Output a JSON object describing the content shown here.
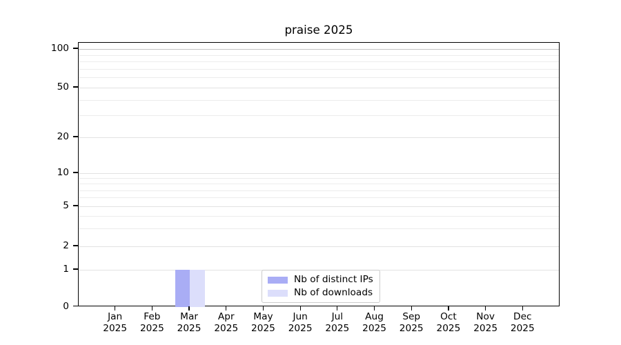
{
  "chart_data": {
    "type": "bar",
    "title": "praise 2025",
    "categories": [
      "Jan 2025",
      "Feb 2025",
      "Mar 2025",
      "Apr 2025",
      "May 2025",
      "Jun 2025",
      "Jul 2025",
      "Aug 2025",
      "Sep 2025",
      "Oct 2025",
      "Nov 2025",
      "Dec 2025"
    ],
    "series": [
      {
        "name": "Nb of distinct IPs",
        "color": "#a9adf5",
        "values": [
          0,
          0,
          1,
          0,
          0,
          0,
          0,
          0,
          0,
          0,
          0,
          0
        ]
      },
      {
        "name": "Nb of downloads",
        "color": "#dcdefb",
        "values": [
          0,
          0,
          1,
          0,
          0,
          0,
          0,
          0,
          0,
          0,
          0,
          0
        ]
      }
    ],
    "xlabel": "",
    "ylabel": "",
    "yscale": "symlog",
    "ylim": [
      0,
      100
    ],
    "y_major_ticks": [
      0,
      1,
      2,
      5,
      10,
      20,
      50,
      100
    ],
    "y_minor_gridlines": [
      3,
      4,
      6,
      7,
      8,
      9,
      30,
      40,
      60,
      70,
      80,
      90
    ],
    "grid": true,
    "legend_position": "lower center"
  },
  "colors": {
    "bar_distinct_ips": "#a9adf5",
    "bar_downloads": "#dcdefb",
    "grid_top_line": "#c3c3c3",
    "grid_major": "#e2e2e2",
    "grid_minor": "#ececec",
    "axis_spine": "#000000",
    "legend_border": "#cbcbcb"
  }
}
